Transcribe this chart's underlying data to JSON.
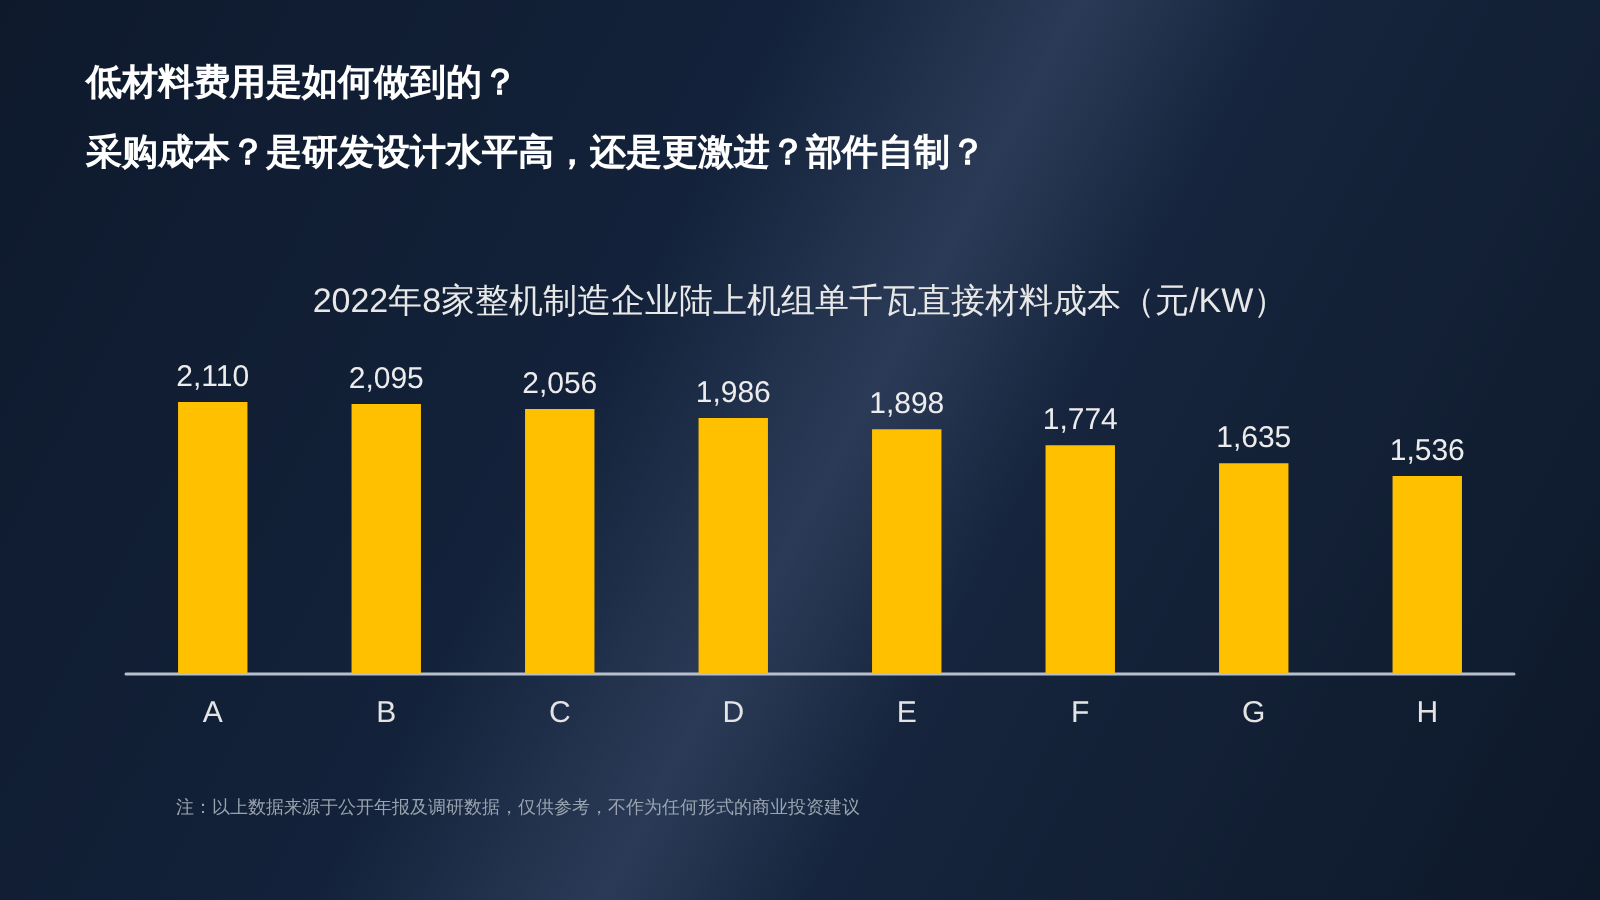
{
  "chart_data": {
    "type": "bar",
    "title": "2022年8家整机制造企业陆上机组单千瓦直接材料成本（元/KW）",
    "categories": [
      "A",
      "B",
      "C",
      "D",
      "E",
      "F",
      "G",
      "H"
    ],
    "values": [
      2110,
      2095,
      2056,
      1986,
      1898,
      1774,
      1635,
      1536
    ],
    "value_labels": [
      "2,110",
      "2,095",
      "2,056",
      "1,986",
      "1,898",
      "1,774",
      "1,635",
      "1,536"
    ],
    "color": "#ffc000",
    "annotations": [
      "低材料费用是如何做到的？",
      "采购成本？是研发设计水平高，还是更激进？部件自制？",
      "注：以上数据来源于公开年报及调研数据，仅供参考，不作为任何形式的商业投资建议"
    ]
  }
}
